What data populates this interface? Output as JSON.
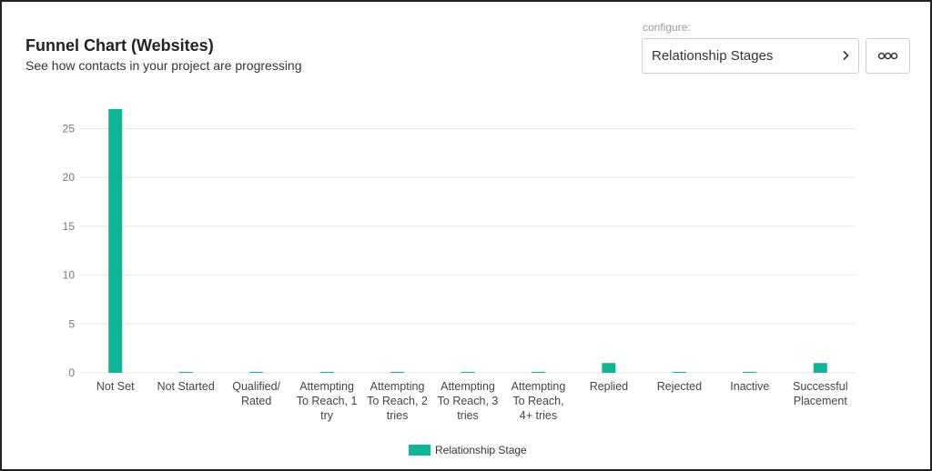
{
  "header": {
    "title": "Funnel Chart (Websites)",
    "subtitle": "See how contacts in your project are progressing"
  },
  "configure": {
    "label": "configure:",
    "selected": "Relationship Stages",
    "chevron_icon": "chevron-right-icon",
    "more_icon": "more-options-icon"
  },
  "colors": {
    "bar": "#10b595",
    "grid": "#e6e6e6"
  },
  "chart_data": {
    "type": "bar",
    "title": "Funnel Chart (Websites)",
    "xlabel": "",
    "ylabel": "",
    "ylim": [
      0,
      27
    ],
    "yticks": [
      0,
      5,
      10,
      15,
      20,
      25
    ],
    "grid": true,
    "legend_position": "bottom-center",
    "categories": [
      "Not Set",
      "Not Started",
      "Qualified/ Rated",
      "Attempting To Reach, 1 try",
      "Attempting To Reach, 2 tries",
      "Attempting To Reach, 3 tries",
      "Attempting To Reach, 4+ tries",
      "Replied",
      "Rejected",
      "Inactive",
      "Successful Placement"
    ],
    "category_label_lines": [
      [
        "Not Set"
      ],
      [
        "Not Started"
      ],
      [
        "Qualified/",
        "Rated"
      ],
      [
        "Attempting",
        "To Reach, 1",
        "try"
      ],
      [
        "Attempting",
        "To Reach, 2",
        "tries"
      ],
      [
        "Attempting",
        "To Reach, 3",
        "tries"
      ],
      [
        "Attempting",
        "To Reach,",
        "4+ tries"
      ],
      [
        "Replied"
      ],
      [
        "Rejected"
      ],
      [
        "Inactive"
      ],
      [
        "Successful",
        "Placement"
      ]
    ],
    "series": [
      {
        "name": "Relationship Stage",
        "values": [
          27,
          0,
          0,
          0,
          0,
          0,
          0,
          1,
          0,
          0,
          1
        ]
      }
    ]
  }
}
